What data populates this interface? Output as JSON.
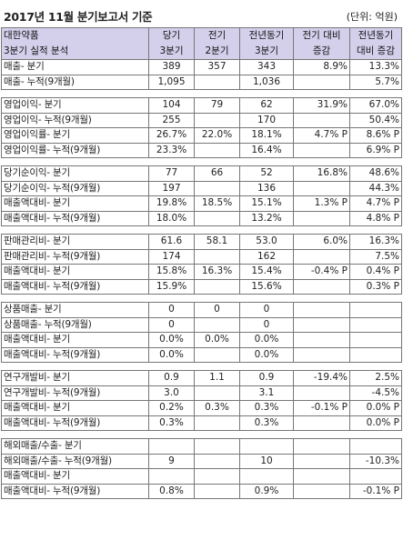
{
  "header": {
    "title": "2017년 11월 분기보고서 기준",
    "unit": "(단위: 억원)"
  },
  "columns": {
    "name_line1": "대한약품",
    "name_line2": "3분기 실적 분석",
    "c1_line1": "당기",
    "c1_line2": "3분기",
    "c2_line1": "전기",
    "c2_line2": "2분기",
    "c3_line1": "전년동기",
    "c3_line2": "3분기",
    "c4_line1": "전기 대비",
    "c4_line2": "증감",
    "c5_line1": "전년동기",
    "c5_line2": "대비 증감"
  },
  "groups": [
    {
      "rows": [
        {
          "name": "매출- 분기",
          "c1": "389",
          "c2": "357",
          "c3": "343",
          "c4": "8.9%",
          "c5": "13.3%"
        },
        {
          "name": "매출- 누적(9개월)",
          "c1": "1,095",
          "c2": "",
          "c3": "1,036",
          "c4": "",
          "c5": "5.7%"
        }
      ]
    },
    {
      "rows": [
        {
          "name": "영업이익- 분기",
          "c1": "104",
          "c2": "79",
          "c3": "62",
          "c4": "31.9%",
          "c5": "67.0%"
        },
        {
          "name": "영업이익- 누적(9개월)",
          "c1": "255",
          "c2": "",
          "c3": "170",
          "c4": "",
          "c5": "50.4%"
        },
        {
          "name": "영업이익률- 분기",
          "c1": "26.7%",
          "c2": "22.0%",
          "c3": "18.1%",
          "c4": "4.7% P",
          "c5": "8.6% P"
        },
        {
          "name": "영업이익률- 누적(9개월)",
          "c1": "23.3%",
          "c2": "",
          "c3": "16.4%",
          "c4": "",
          "c5": "6.9% P"
        }
      ]
    },
    {
      "rows": [
        {
          "name": "당기순이익- 분기",
          "c1": "77",
          "c2": "66",
          "c3": "52",
          "c4": "16.8%",
          "c5": "48.6%"
        },
        {
          "name": "당기순이익- 누적(9개월)",
          "c1": "197",
          "c2": "",
          "c3": "136",
          "c4": "",
          "c5": "44.3%"
        },
        {
          "name": "매출액대비- 분기",
          "c1": "19.8%",
          "c2": "18.5%",
          "c3": "15.1%",
          "c4": "1.3% P",
          "c5": "4.7% P"
        },
        {
          "name": "매출액대비- 누적(9개월)",
          "c1": "18.0%",
          "c2": "",
          "c3": "13.2%",
          "c4": "",
          "c5": "4.8% P"
        }
      ]
    },
    {
      "rows": [
        {
          "name": "판매관리비- 분기",
          "c1": "61.6",
          "c2": "58.1",
          "c3": "53.0",
          "c4": "6.0%",
          "c5": "16.3%"
        },
        {
          "name": "판매관리비- 누적(9개월)",
          "c1": "174",
          "c2": "",
          "c3": "162",
          "c4": "",
          "c5": "7.5%"
        },
        {
          "name": "매출액대비- 분기",
          "c1": "15.8%",
          "c2": "16.3%",
          "c3": "15.4%",
          "c4": "-0.4% P",
          "c5": "0.4% P"
        },
        {
          "name": "매출액대비- 누적(9개월)",
          "c1": "15.9%",
          "c2": "",
          "c3": "15.6%",
          "c4": "",
          "c5": "0.3% P"
        }
      ]
    },
    {
      "rows": [
        {
          "name": "상품매출- 분기",
          "c1": "0",
          "c2": "0",
          "c3": "0",
          "c4": "",
          "c5": ""
        },
        {
          "name": "상품매출- 누적(9개월)",
          "c1": "0",
          "c2": "",
          "c3": "0",
          "c4": "",
          "c5": ""
        },
        {
          "name": "매출액대비- 분기",
          "c1": "0.0%",
          "c2": "0.0%",
          "c3": "0.0%",
          "c4": "",
          "c5": ""
        },
        {
          "name": "매출액대비- 누적(9개월)",
          "c1": "0.0%",
          "c2": "",
          "c3": "0.0%",
          "c4": "",
          "c5": ""
        }
      ]
    },
    {
      "rows": [
        {
          "name": "연구개발비- 분기",
          "c1": "0.9",
          "c2": "1.1",
          "c3": "0.9",
          "c4": "-19.4%",
          "c5": "2.5%"
        },
        {
          "name": "연구개발비- 누적(9개월)",
          "c1": "3.0",
          "c2": "",
          "c3": "3.1",
          "c4": "",
          "c5": "-4.5%"
        },
        {
          "name": "매출액대비- 분기",
          "c1": "0.2%",
          "c2": "0.3%",
          "c3": "0.3%",
          "c4": "-0.1% P",
          "c5": "0.0% P"
        },
        {
          "name": "매출액대비- 누적(9개월)",
          "c1": "0.3%",
          "c2": "",
          "c3": "0.3%",
          "c4": "",
          "c5": "0.0% P"
        }
      ]
    },
    {
      "rows": [
        {
          "name": "해외매출/수출- 분기",
          "c1": "",
          "c2": "",
          "c3": "",
          "c4": "",
          "c5": ""
        },
        {
          "name": "해외매출/수출- 누적(9개월)",
          "c1": "9",
          "c2": "",
          "c3": "10",
          "c4": "",
          "c5": "-10.3%"
        },
        {
          "name": "매출액대비- 분기",
          "c1": "",
          "c2": "",
          "c3": "",
          "c4": "",
          "c5": ""
        },
        {
          "name": "매출액대비- 누적(9개월)",
          "c1": "0.8%",
          "c2": "",
          "c3": "0.9%",
          "c4": "",
          "c5": "-0.1% P"
        }
      ]
    }
  ]
}
